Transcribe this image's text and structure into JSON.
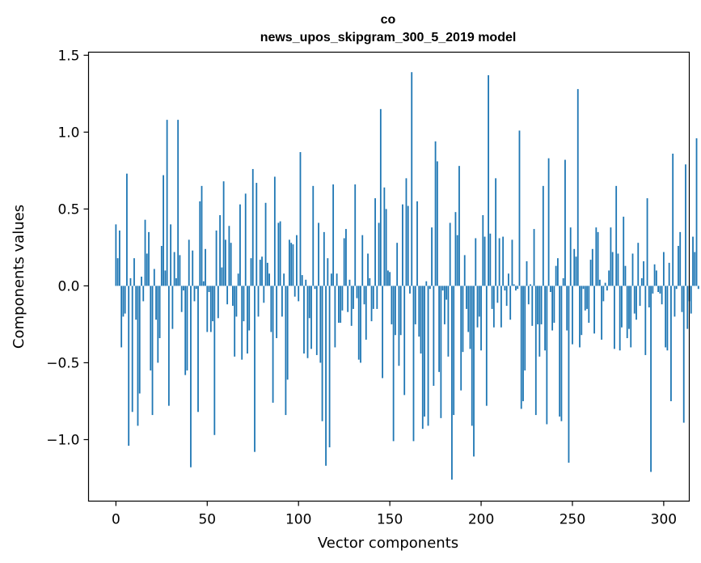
{
  "chart_data": {
    "type": "bar",
    "title_line1": "co",
    "title_line2": "news_upos_skipgram_300_5_2019 model",
    "xlabel": "Vector components",
    "ylabel": "Components values",
    "xlim": [
      -15,
      314
    ],
    "ylim": [
      -1.4,
      1.52
    ],
    "xticks": [
      0,
      50,
      100,
      150,
      200,
      250,
      300
    ],
    "yticks": [
      -1.0,
      -0.5,
      0.0,
      0.5,
      1.0,
      1.5
    ],
    "ytick_labels": [
      "−1.0",
      "−0.5",
      "0.0",
      "0.5",
      "1.0",
      "1.5"
    ],
    "bar_color": "#1f77b4",
    "values": [
      0.4,
      0.18,
      0.36,
      -0.4,
      -0.2,
      -0.18,
      0.73,
      -1.04,
      0.05,
      -0.82,
      0.18,
      -0.22,
      -0.91,
      -0.7,
      0.06,
      -0.1,
      0.43,
      0.21,
      0.35,
      -0.55,
      -0.84,
      0.11,
      -0.22,
      -0.5,
      -0.34,
      0.26,
      0.72,
      0.1,
      1.08,
      -0.78,
      0.4,
      -0.28,
      0.22,
      0.05,
      1.08,
      0.2,
      -0.17,
      -0.03,
      -0.58,
      -0.55,
      0.3,
      -1.18,
      0.23,
      -0.1,
      -0.02,
      -0.82,
      0.55,
      0.65,
      0.03,
      0.24,
      -0.3,
      -0.04,
      -0.3,
      -0.23,
      -0.97,
      0.36,
      -0.21,
      0.46,
      0.12,
      0.68,
      0.3,
      -0.12,
      0.39,
      0.28,
      -0.13,
      -0.46,
      -0.2,
      0.08,
      0.53,
      -0.48,
      -0.23,
      0.6,
      -0.44,
      -0.29,
      0.18,
      0.76,
      -1.08,
      0.67,
      -0.2,
      0.17,
      0.19,
      -0.11,
      0.54,
      0.15,
      0.08,
      -0.3,
      -0.76,
      0.71,
      -0.34,
      0.41,
      0.42,
      -0.2,
      0.08,
      -0.84,
      -0.61,
      0.3,
      0.28,
      0.27,
      -0.07,
      0.33,
      -0.1,
      0.87,
      0.07,
      -0.44,
      0.04,
      -0.47,
      -0.21,
      -0.41,
      0.65,
      -0.02,
      -0.45,
      0.41,
      -0.5,
      -0.88,
      0.35,
      -1.17,
      0.18,
      -1.05,
      0.08,
      0.66,
      -0.4,
      0.08,
      -0.24,
      -0.24,
      -0.16,
      0.31,
      0.37,
      -0.17,
      0.04,
      -0.26,
      -0.15,
      0.66,
      -0.08,
      -0.48,
      -0.5,
      0.33,
      -0.12,
      -0.35,
      0.21,
      0.05,
      -0.23,
      -0.15,
      0.57,
      -0.15,
      0.41,
      1.15,
      -0.6,
      0.64,
      0.5,
      0.1,
      0.09,
      -0.25,
      -1.01,
      -0.32,
      0.28,
      -0.52,
      -0.32,
      0.53,
      -0.71,
      0.7,
      0.52,
      -0.05,
      1.39,
      -1.01,
      -0.25,
      0.55,
      -0.33,
      -0.44,
      -0.93,
      -0.85,
      0.03,
      -0.91,
      -0.02,
      0.38,
      -0.65,
      0.94,
      0.81,
      -0.56,
      -0.86,
      -0.03,
      -0.25,
      -0.09,
      -0.46,
      0.41,
      -1.26,
      -0.84,
      0.48,
      0.33,
      0.78,
      -0.68,
      -0.43,
      0.2,
      -0.15,
      -0.3,
      -0.41,
      -0.91,
      -1.11,
      0.31,
      -0.27,
      -0.2,
      -0.42,
      0.46,
      0.32,
      -0.78,
      1.37,
      0.34,
      -0.15,
      -0.27,
      0.7,
      -0.11,
      0.31,
      -0.27,
      0.32,
      -0.03,
      -0.13,
      0.08,
      -0.22,
      0.3,
      0.01,
      -0.03,
      -0.02,
      1.01,
      -0.8,
      -0.75,
      -0.55,
      0.16,
      -0.12,
      0.01,
      -0.26,
      0.37,
      -0.84,
      -0.25,
      -0.46,
      -0.25,
      0.65,
      -0.42,
      -0.9,
      0.83,
      -0.04,
      -0.29,
      -0.24,
      0.13,
      0.18,
      -0.85,
      -0.88,
      0.05,
      0.82,
      -0.29,
      -1.15,
      0.38,
      -0.38,
      0.24,
      0.19,
      1.28,
      -0.4,
      -0.32,
      -0.02,
      -0.16,
      -0.15,
      -0.24,
      0.17,
      0.24,
      -0.31,
      0.38,
      0.35,
      0.04,
      -0.35,
      -0.1,
      0.02,
      -0.03,
      0.1,
      0.38,
      0.22,
      -0.41,
      0.65,
      0.21,
      -0.42,
      -0.27,
      0.45,
      0.13,
      -0.34,
      -0.28,
      -0.4,
      0.21,
      -0.18,
      -0.22,
      0.28,
      -0.13,
      0.05,
      0.16,
      -0.45,
      0.57,
      -0.14,
      -1.21,
      -0.05,
      0.14,
      0.1,
      -0.04,
      -0.05,
      -0.12,
      0.22,
      -0.4,
      -0.42,
      0.15,
      -0.75,
      0.86,
      -0.2,
      -0.02,
      0.26,
      0.35,
      -0.17,
      -0.89,
      0.79,
      -0.28,
      -0.1,
      -0.18,
      0.32,
      0.22,
      0.96,
      -0.02
    ]
  }
}
